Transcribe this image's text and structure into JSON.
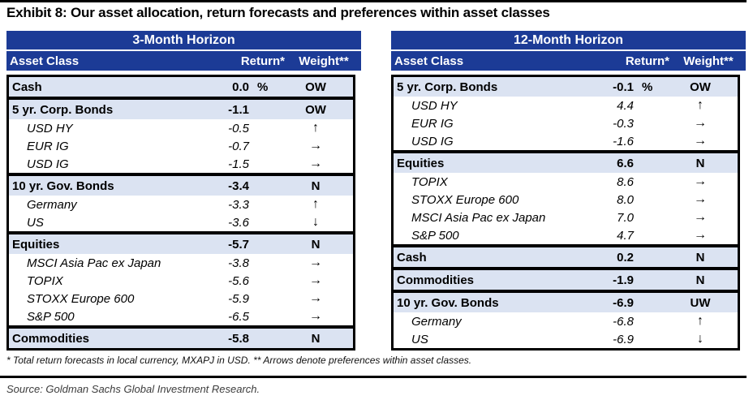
{
  "title": "Exhibit 8: Our asset allocation, return forecasts and preferences within asset classes",
  "footnote": "* Total return forecasts in local currency, MXAPJ in USD. ** Arrows denote preferences within asset classes.",
  "source": "Source: Goldman Sachs Global Investment Research.",
  "colors": {
    "header_blue": "#1c3b96",
    "row_highlight_blue": "#dbe3f2",
    "border_black": "#000000"
  },
  "tables": [
    {
      "horizon": "3-Month Horizon",
      "columns": [
        "Asset Class",
        "Return*",
        "Weight**"
      ],
      "groups": [
        {
          "rows": [
            {
              "type": "header",
              "name": "Cash",
              "return": "0.0",
              "pct": "%",
              "weight": "OW"
            }
          ]
        },
        {
          "rows": [
            {
              "type": "header",
              "name": "5 yr. Corp. Bonds",
              "return": "-1.1",
              "weight": "OW"
            },
            {
              "type": "sub",
              "name": "USD HY",
              "return": "-0.5",
              "weight": "↑"
            },
            {
              "type": "sub",
              "name": "EUR IG",
              "return": "-0.7",
              "weight": "→"
            },
            {
              "type": "sub",
              "name": "USD IG",
              "return": "-1.5",
              "weight": "→"
            }
          ]
        },
        {
          "rows": [
            {
              "type": "header",
              "name": "10 yr. Gov. Bonds",
              "return": "-3.4",
              "weight": "N"
            },
            {
              "type": "sub",
              "name": "Germany",
              "return": "-3.3",
              "weight": "↑"
            },
            {
              "type": "sub",
              "name": "US",
              "return": "-3.6",
              "weight": "↓"
            }
          ]
        },
        {
          "rows": [
            {
              "type": "header",
              "name": "Equities",
              "return": "-5.7",
              "weight": "N"
            },
            {
              "type": "sub",
              "name": "MSCI Asia Pac ex Japan",
              "return": "-3.8",
              "weight": "→"
            },
            {
              "type": "sub",
              "name": "TOPIX",
              "return": "-5.6",
              "weight": "→"
            },
            {
              "type": "sub",
              "name": "STOXX Europe 600",
              "return": "-5.9",
              "weight": "→"
            },
            {
              "type": "sub",
              "name": "S&P 500",
              "return": "-6.5",
              "weight": "→"
            }
          ]
        },
        {
          "rows": [
            {
              "type": "header",
              "name": "Commodities",
              "return": "-5.8",
              "weight": "N"
            }
          ]
        }
      ]
    },
    {
      "horizon": "12-Month Horizon",
      "columns": [
        "Asset Class",
        "Return*",
        "Weight**"
      ],
      "groups": [
        {
          "rows": [
            {
              "type": "header",
              "name": "5 yr. Corp. Bonds",
              "return": "-0.1",
              "pct": "%",
              "weight": "OW"
            },
            {
              "type": "sub",
              "name": "USD HY",
              "return": "4.4",
              "weight": "↑"
            },
            {
              "type": "sub",
              "name": "EUR IG",
              "return": "-0.3",
              "weight": "→"
            },
            {
              "type": "sub",
              "name": "USD IG",
              "return": "-1.6",
              "weight": "→"
            }
          ]
        },
        {
          "rows": [
            {
              "type": "header",
              "name": "Equities",
              "return": "6.6",
              "weight": "N"
            },
            {
              "type": "sub",
              "name": "TOPIX",
              "return": "8.6",
              "weight": "→"
            },
            {
              "type": "sub",
              "name": "STOXX Europe 600",
              "return": "8.0",
              "weight": "→"
            },
            {
              "type": "sub",
              "name": "MSCI Asia Pac ex Japan",
              "return": "7.0",
              "weight": "→"
            },
            {
              "type": "sub",
              "name": "S&P 500",
              "return": "4.7",
              "weight": "→"
            }
          ]
        },
        {
          "rows": [
            {
              "type": "header",
              "name": "Cash",
              "return": "0.2",
              "weight": "N"
            }
          ]
        },
        {
          "rows": [
            {
              "type": "header",
              "name": "Commodities",
              "return": "-1.9",
              "weight": "N"
            }
          ]
        },
        {
          "rows": [
            {
              "type": "header",
              "name": "10 yr. Gov. Bonds",
              "return": "-6.9",
              "weight": "UW"
            },
            {
              "type": "sub",
              "name": "Germany",
              "return": "-6.8",
              "weight": "↑"
            },
            {
              "type": "sub",
              "name": "US",
              "return": "-6.9",
              "weight": "↓"
            }
          ]
        }
      ]
    }
  ]
}
